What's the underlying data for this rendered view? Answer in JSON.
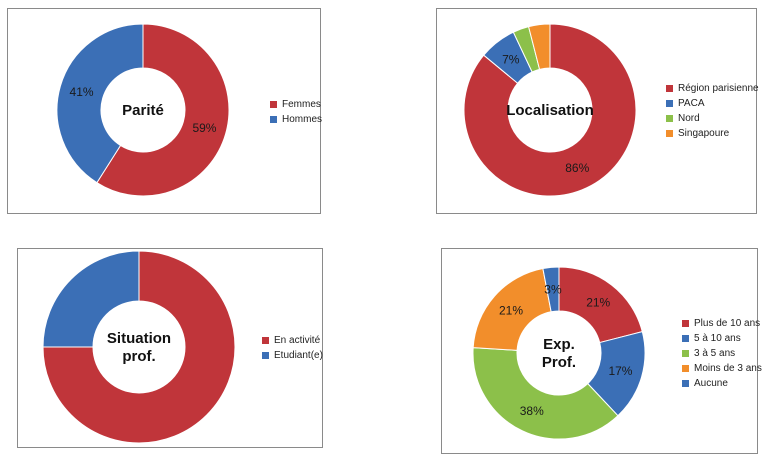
{
  "chart_data": [
    {
      "type": "pie",
      "title": "Parité",
      "title_lines": [
        "Parité"
      ],
      "categories": [
        "Femmes",
        "Hommes"
      ],
      "values": [
        59,
        41
      ],
      "labels": [
        "59%",
        "41%"
      ],
      "colors": [
        "#C0353A",
        "#3B6FB6"
      ],
      "legend": "right"
    },
    {
      "type": "pie",
      "title": "Localisation",
      "title_lines": [
        "Localisation"
      ],
      "categories": [
        "Région parisienne",
        "PACA",
        "Nord",
        "Singapoure"
      ],
      "values": [
        86,
        7,
        3,
        4
      ],
      "labels": [
        "86%",
        "7%",
        "",
        ""
      ],
      "colors": [
        "#C0353A",
        "#3B6FB6",
        "#8CC04A",
        "#F28E2B"
      ],
      "legend": "right"
    },
    {
      "type": "pie",
      "title": "Situation prof.",
      "title_lines": [
        "Situation",
        "prof."
      ],
      "categories": [
        "En activité",
        "Etudiant(e)"
      ],
      "values": [
        75,
        25
      ],
      "labels": [
        "",
        ""
      ],
      "colors": [
        "#C0353A",
        "#3B6FB6"
      ],
      "legend": "right"
    },
    {
      "type": "pie",
      "title": "Exp. Prof.",
      "title_lines": [
        "Exp.",
        "Prof."
      ],
      "categories": [
        "Plus de 10 ans",
        "5 à 10 ans",
        "3 à 5 ans",
        "Moins de 3 ans",
        "Aucune"
      ],
      "values": [
        21,
        17,
        38,
        21,
        3
      ],
      "labels": [
        "21%",
        "17%",
        "38%",
        "21%",
        "3%"
      ],
      "colors": [
        "#C0353A",
        "#3B6FB6",
        "#8CC04A",
        "#F28E2B",
        "#3B6FB6"
      ],
      "legend": "right"
    }
  ]
}
